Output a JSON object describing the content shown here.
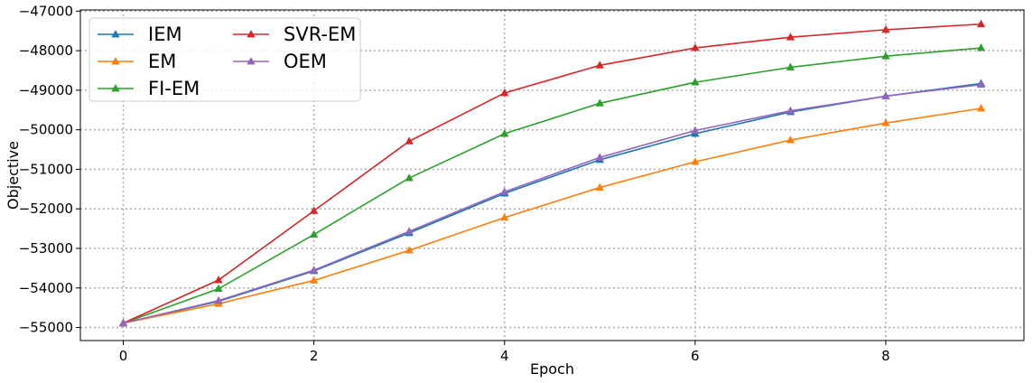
{
  "chart_data": {
    "type": "line",
    "xlabel": "Epoch",
    "ylabel": "Objective",
    "x": [
      0,
      1,
      2,
      3,
      4,
      5,
      6,
      7,
      8,
      9
    ],
    "xlim": [
      -0.45,
      9.45
    ],
    "ylim": [
      -55330,
      -46970
    ],
    "x_ticks": [
      0,
      2,
      4,
      6,
      8
    ],
    "x_tick_labels": [
      "0",
      "2",
      "4",
      "6",
      "8"
    ],
    "y_ticks": [
      -55000,
      -54000,
      -53000,
      -52000,
      -51000,
      -50000,
      -49000,
      -48000,
      -47000
    ],
    "y_tick_labels": [
      "−55000",
      "−54000",
      "−53000",
      "−52000",
      "−51000",
      "−50000",
      "−49000",
      "−48000",
      "−47000"
    ],
    "grid": true,
    "grid_style": "dotted",
    "legend_position": "top-left",
    "legend_columns": 2,
    "marker": "triangle",
    "series": [
      {
        "name": "IEM",
        "color": "#1f77b4",
        "values": [
          -54890,
          -54340,
          -53570,
          -52610,
          -51610,
          -50760,
          -50100,
          -49550,
          -49150,
          -48830
        ]
      },
      {
        "name": "EM",
        "color": "#ff7f0e",
        "values": [
          -54890,
          -54400,
          -53810,
          -53050,
          -52220,
          -51460,
          -50810,
          -50260,
          -49830,
          -49460
        ]
      },
      {
        "name": "FI-EM",
        "color": "#2ca02c",
        "values": [
          -54890,
          -54020,
          -52650,
          -51220,
          -50100,
          -49330,
          -48800,
          -48420,
          -48140,
          -47930
        ]
      },
      {
        "name": "SVR-EM",
        "color": "#d62728",
        "values": [
          -54890,
          -53800,
          -52050,
          -50290,
          -49070,
          -48370,
          -47930,
          -47660,
          -47470,
          -47330
        ]
      },
      {
        "name": "OEM",
        "color": "#9467bd",
        "values": [
          -54890,
          -54320,
          -53550,
          -52570,
          -51570,
          -50700,
          -50020,
          -49520,
          -49150,
          -48860
        ]
      }
    ]
  }
}
